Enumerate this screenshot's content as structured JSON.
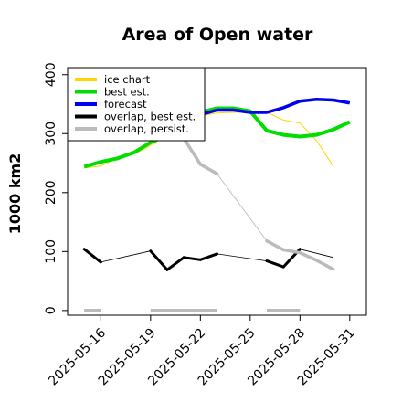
{
  "chart_data": {
    "type": "line",
    "title": "Area of Open water",
    "xlabel": "",
    "ylabel": "1000 km2",
    "ylim": [
      -8,
      412
    ],
    "xlim_dates": [
      "2025-05-14",
      "2025-06-01"
    ],
    "y_ticks": [
      0,
      100,
      200,
      300,
      400
    ],
    "x_ticks": [
      {
        "date": "2025-05-16",
        "label": "2025-05-16",
        "color": "#000000"
      },
      {
        "date": "2025-05-19",
        "label": "2025-05-19",
        "color": "#000000"
      },
      {
        "date": "2025-05-22",
        "label": "2025-05-22",
        "color": "#228B22"
      },
      {
        "date": "2025-05-25",
        "label": "2025-05-25",
        "color": "#000000"
      },
      {
        "date": "2025-05-28",
        "label": "2025-05-28",
        "color": "#000000"
      },
      {
        "date": "2025-05-31",
        "label": "2025-05-31",
        "color": "#000000"
      }
    ],
    "legend_position": "top-left",
    "grid": false,
    "series": [
      {
        "name": "ice chart",
        "color": "#FFD400",
        "points": [
          [
            "2025-05-15",
            242
          ],
          [
            "2025-05-16",
            245
          ],
          [
            "2025-05-17",
            258
          ],
          [
            "2025-05-18",
            265
          ],
          [
            "2025-05-19",
            280
          ],
          [
            "2025-05-20",
            298
          ],
          [
            "2025-05-21",
            316
          ],
          [
            "2025-05-22",
            330
          ],
          [
            "2025-05-23",
            335
          ],
          [
            "2025-05-24",
            336
          ],
          [
            "2025-05-25",
            337
          ],
          [
            "2025-05-26",
            336
          ],
          [
            "2025-05-27",
            323
          ],
          [
            "2025-05-28",
            318
          ],
          [
            "2025-05-29",
            288
          ],
          [
            "2025-05-30",
            245
          ]
        ]
      },
      {
        "name": "best est.",
        "color": "#00DD00",
        "points": [
          [
            "2025-05-15",
            244
          ],
          [
            "2025-05-16",
            252
          ],
          [
            "2025-05-17",
            258
          ],
          [
            "2025-05-18",
            268
          ],
          [
            "2025-05-19",
            285
          ],
          [
            "2025-05-20",
            298
          ],
          [
            "2025-05-21",
            318
          ],
          [
            "2025-05-22",
            336
          ],
          [
            "2025-05-23",
            343
          ],
          [
            "2025-05-24",
            343
          ],
          [
            "2025-05-25",
            338
          ],
          [
            "2025-05-26",
            305
          ],
          [
            "2025-05-27",
            298
          ],
          [
            "2025-05-28",
            295
          ],
          [
            "2025-05-29",
            298
          ],
          [
            "2025-05-30",
            307
          ],
          [
            "2025-05-31",
            320
          ]
        ]
      },
      {
        "name": "forecast",
        "color": "#0000EE",
        "points": [
          [
            "2025-05-21",
            310
          ],
          [
            "2025-05-22",
            332
          ],
          [
            "2025-05-23",
            340
          ],
          [
            "2025-05-24",
            340
          ],
          [
            "2025-05-25",
            336
          ],
          [
            "2025-05-26",
            336
          ],
          [
            "2025-05-27",
            344
          ],
          [
            "2025-05-28",
            355
          ],
          [
            "2025-05-29",
            358
          ],
          [
            "2025-05-30",
            357
          ],
          [
            "2025-05-31",
            352
          ]
        ]
      },
      {
        "name": "overlap, best est.",
        "color": "#000000",
        "segments": [
          [
            [
              "2025-05-15",
              104
            ],
            [
              "2025-05-16",
              82
            ],
            [
              "2025-05-19",
              101
            ],
            [
              "2025-05-20",
              69
            ],
            [
              "2025-05-21",
              90
            ],
            [
              "2025-05-22",
              86
            ],
            [
              "2025-05-23",
              96
            ],
            [
              "2025-05-26",
              84
            ],
            [
              "2025-05-27",
              74
            ],
            [
              "2025-05-28",
              104
            ],
            [
              "2025-05-30",
              90
            ]
          ]
        ]
      },
      {
        "name": "overlap, persist.",
        "color": "#BBBBBB",
        "segments": [
          [
            [
              "2025-05-15",
              0
            ],
            [
              "2025-05-16",
              0
            ]
          ],
          [
            [
              "2025-05-19",
              0
            ],
            [
              "2025-05-23",
              0
            ]
          ],
          [
            [
              "2025-05-26",
              0
            ],
            [
              "2025-05-28",
              0
            ]
          ],
          [
            [
              "2025-05-21",
              292
            ],
            [
              "2025-05-22",
              248
            ],
            [
              "2025-05-23",
              232
            ],
            [
              "2025-05-26",
              118
            ],
            [
              "2025-05-27",
              103
            ],
            [
              "2025-05-28",
              98
            ],
            [
              "2025-05-29",
              85
            ],
            [
              "2025-05-30",
              70
            ]
          ]
        ]
      }
    ]
  }
}
